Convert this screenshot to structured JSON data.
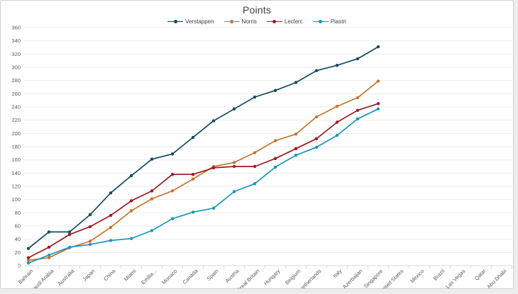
{
  "page": {
    "background_color": "#ededed",
    "card_border_color": "#cfcfcf"
  },
  "chart_data": {
    "type": "line",
    "title": "Points",
    "xlabel": "",
    "ylabel": "",
    "ylim": [
      0,
      360
    ],
    "ytick_step": 20,
    "grid": true,
    "legend_position": "top-center",
    "grid_color": "#ebebeb",
    "axis_color": "#d9d9d9",
    "tick_label_color": "#595959",
    "title_color": "#3f3f3f",
    "categories": [
      "Bahrain",
      "Saudi Arabia",
      "Australia",
      "Japan",
      "China",
      "Miami",
      "Emilia...",
      "Monaco",
      "Canada",
      "Spain",
      "Austria",
      "Great Britain",
      "Hungary",
      "Belgium",
      "Netherlands",
      "Italy",
      "Azerbaijan",
      "Singapore",
      "United States",
      "Mexico",
      "Brazil",
      "Las Vegas",
      "Qatar",
      "Abu Dhabi"
    ],
    "series": [
      {
        "name": "Verstappen",
        "color": "#134a61",
        "values": [
          26,
          51,
          51,
          77,
          110,
          136,
          161,
          169,
          194,
          219,
          237,
          255,
          265,
          277,
          295,
          303,
          313,
          331
        ]
      },
      {
        "name": "Norris",
        "color": "#c8732d",
        "values": [
          8,
          12,
          27,
          37,
          58,
          83,
          101,
          113,
          131,
          150,
          156,
          171,
          189,
          199,
          225,
          241,
          254,
          279
        ]
      },
      {
        "name": "Leclerc",
        "color": "#9e1b23",
        "values": [
          12,
          28,
          47,
          59,
          76,
          98,
          113,
          138,
          138,
          148,
          150,
          150,
          162,
          177,
          192,
          217,
          235,
          245
        ]
      },
      {
        "name": "Piastri",
        "color": "#1898c0",
        "values": [
          4,
          16,
          28,
          32,
          38,
          41,
          53,
          71,
          81,
          87,
          112,
          124,
          149,
          167,
          179,
          197,
          222,
          237
        ]
      }
    ]
  }
}
